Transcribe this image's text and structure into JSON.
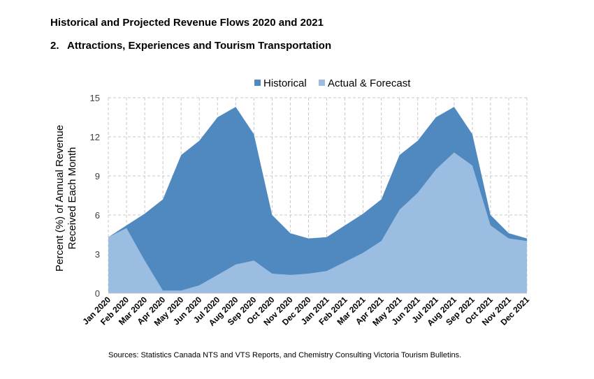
{
  "title": "Historical and Projected Revenue Flows 2020 and 2021",
  "subtitle_number": "2.",
  "subtitle": "Attractions, Experiences and Tourism Transportation",
  "source": "Sources: Statistics Canada NTS and VTS Reports, and Chemistry Consulting Victoria Tourism Bulletins.",
  "chart_data": {
    "type": "area",
    "title": "Historical and Projected Revenue Flows 2020 and 2021",
    "subtitle": "2. Attractions, Experiences and Tourism Transportation",
    "ylabel_line1": "Percent (%) of Annual Revenue",
    "ylabel_line2": "Received Each Month",
    "xlabel": "",
    "ylim": [
      0,
      15
    ],
    "yticks": [
      0,
      3,
      6,
      9,
      12,
      15
    ],
    "grid": true,
    "legend_position": "top",
    "categories": [
      "Jan 2020",
      "Feb 2020",
      "Mar 2020",
      "Apr 2020",
      "May 2020",
      "Jun 2020",
      "Jul 2020",
      "Aug 2020",
      "Sep 2020",
      "Oct 2020",
      "Nov 2020",
      "Dec 2020",
      "Jan 2021",
      "Feb 2021",
      "Mar 2021",
      "Apr 2021",
      "May 2021",
      "Jun 2021",
      "Jul 2021",
      "Aug 2021",
      "Sep 2021",
      "Oct 2021",
      "Nov 2021",
      "Dec 2021"
    ],
    "series": [
      {
        "name": "Historical",
        "color": "#4f89bf",
        "values": [
          4.3,
          5.2,
          6.1,
          7.2,
          10.6,
          11.7,
          13.5,
          14.3,
          12.2,
          6.0,
          4.6,
          4.2,
          4.3,
          5.2,
          6.1,
          7.2,
          10.6,
          11.7,
          13.5,
          14.3,
          12.2,
          6.0,
          4.6,
          4.2
        ]
      },
      {
        "name": "Actual & Forecast",
        "color": "#9bbde2",
        "values": [
          4.3,
          5.0,
          2.5,
          0.2,
          0.2,
          0.6,
          1.4,
          2.2,
          2.5,
          1.5,
          1.4,
          1.5,
          1.7,
          2.4,
          3.1,
          4.0,
          6.4,
          7.7,
          9.5,
          10.8,
          9.8,
          5.2,
          4.2,
          4.0
        ]
      }
    ]
  }
}
